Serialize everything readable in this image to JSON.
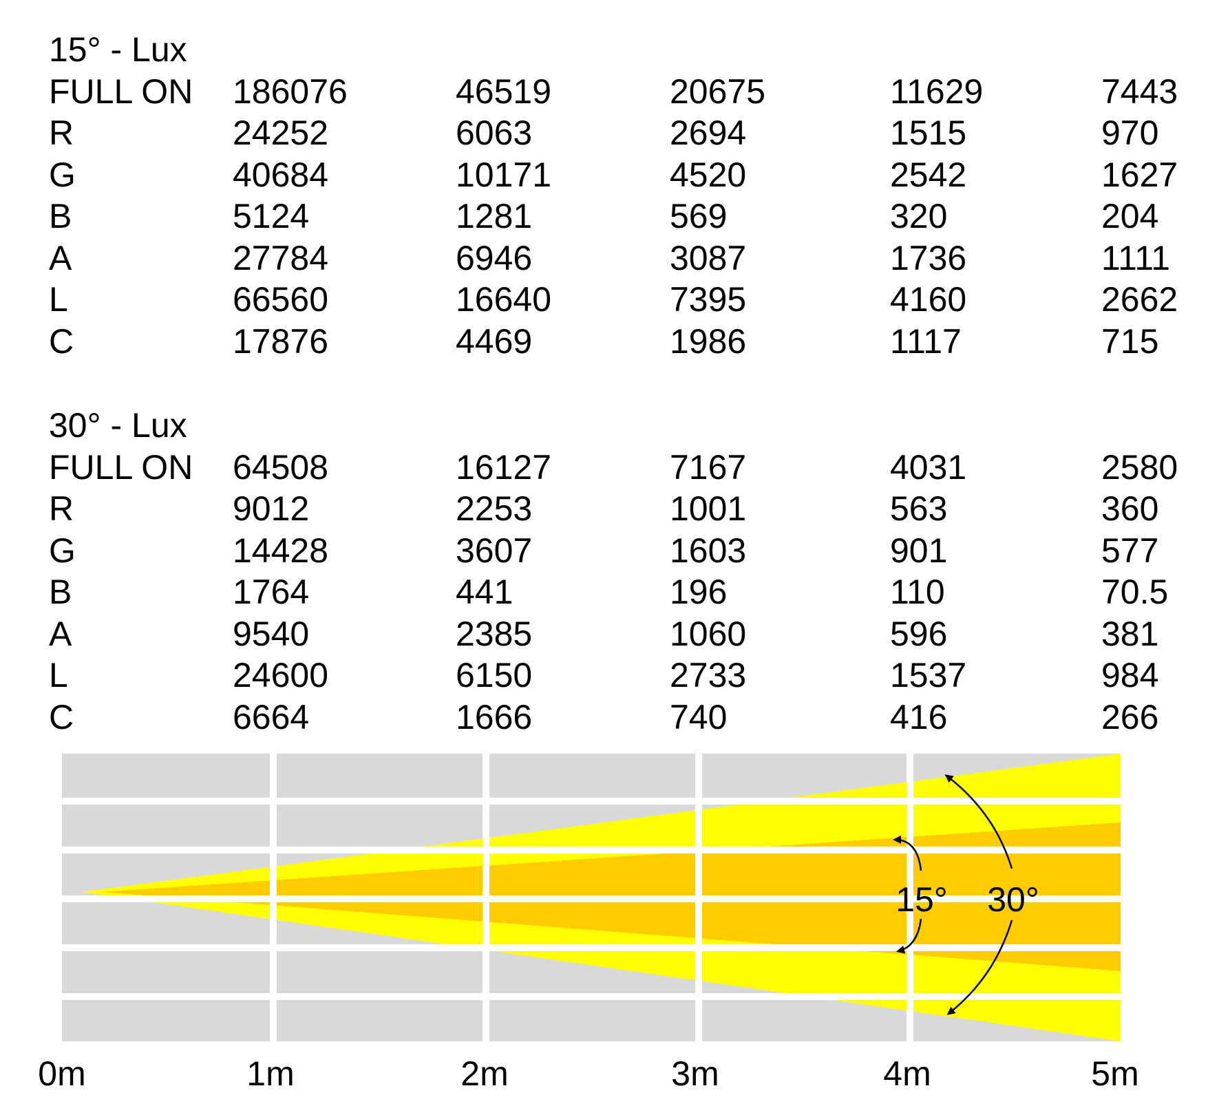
{
  "tables": [
    {
      "title": "15° - Lux",
      "rows": [
        {
          "label": "FULL ON",
          "values": [
            "186076",
            "46519",
            "20675",
            "11629",
            "7443"
          ]
        },
        {
          "label": "R",
          "values": [
            "24252",
            "6063",
            "2694",
            "1515",
            "970"
          ]
        },
        {
          "label": "G",
          "values": [
            "40684",
            "10171",
            "4520",
            "2542",
            "1627"
          ]
        },
        {
          "label": "B",
          "values": [
            "5124",
            "1281",
            "569",
            "320",
            "204"
          ]
        },
        {
          "label": "A",
          "values": [
            "27784",
            "6946",
            "3087",
            "1736",
            "1111"
          ]
        },
        {
          "label": "L",
          "values": [
            "66560",
            "16640",
            "7395",
            "4160",
            "2662"
          ]
        },
        {
          "label": "C",
          "values": [
            "17876",
            "4469",
            "1986",
            "1117",
            "715"
          ]
        }
      ]
    },
    {
      "title": "30° - Lux",
      "rows": [
        {
          "label": "FULL ON",
          "values": [
            "64508",
            "16127",
            "7167",
            "4031",
            "2580"
          ]
        },
        {
          "label": "R",
          "values": [
            "9012",
            "2253",
            "1001",
            "563",
            "360"
          ]
        },
        {
          "label": "G",
          "values": [
            "14428",
            "3607",
            "1603",
            "901",
            "577"
          ]
        },
        {
          "label": "B",
          "values": [
            "1764",
            "441",
            "196",
            "110",
            "70.5"
          ]
        },
        {
          "label": "A",
          "values": [
            "9540",
            "2385",
            "1060",
            "596",
            "381"
          ]
        },
        {
          "label": "L",
          "values": [
            "24600",
            "6150",
            "2733",
            "1537",
            "984"
          ]
        },
        {
          "label": "C",
          "values": [
            "6664",
            "1666",
            "740",
            "416",
            "266"
          ]
        }
      ]
    }
  ],
  "diagram": {
    "angle_labels": [
      "15°",
      "30°"
    ],
    "beam_angles_deg": [
      15,
      30
    ],
    "distance_labels": [
      "0m",
      "1m",
      "2m",
      "3m",
      "4m",
      "5m"
    ],
    "colors": {
      "grid": "#d9d9d9",
      "beam_30": "#ffff00",
      "beam_15": "#ffcc00",
      "arrow": "#000000"
    }
  }
}
